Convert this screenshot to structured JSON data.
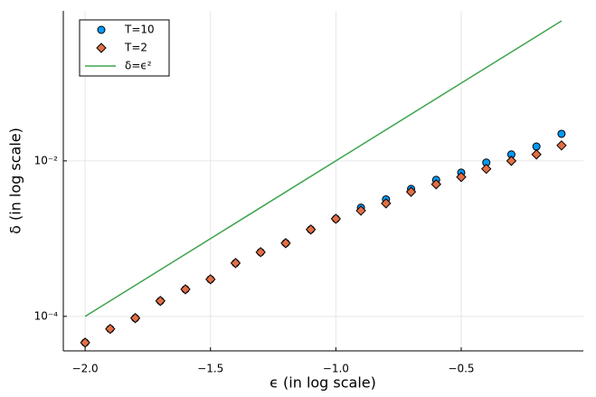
{
  "chart_data": {
    "type": "scatter",
    "xlabel": "ϵ (in log scale)",
    "ylabel": "δ (in log scale)",
    "xlim": [
      -2.087,
      -0.013
    ],
    "ylim": [
      3.6e-05,
      0.85
    ],
    "ylog": true,
    "grid": true,
    "legend": "top-left",
    "xticks": [
      {
        "value": -2,
        "label": "−2.0"
      },
      {
        "value": -1.5,
        "label": "−1.5"
      },
      {
        "value": -1,
        "label": "−1.0"
      },
      {
        "value": -0.5,
        "label": "−0.5"
      }
    ],
    "yticks": [
      {
        "value": 0.0001,
        "label": "10⁻⁴"
      },
      {
        "value": 0.01,
        "label": "10⁻²"
      }
    ],
    "series": [
      {
        "name": "T=10",
        "type": "scatter",
        "marker": "circle",
        "color": "#009af9",
        "x": [
          -2.0,
          -1.9,
          -1.8,
          -1.7,
          -1.6,
          -1.5,
          -1.4,
          -1.3,
          -1.2,
          -1.1,
          -1.0,
          -0.9,
          -0.8,
          -0.7,
          -0.6,
          -0.5,
          -0.4,
          -0.3,
          -0.2,
          -0.1
        ],
        "values": [
          4.6e-05,
          6.9e-05,
          9.5e-05,
          0.000158,
          0.000223,
          0.0003,
          0.000485,
          0.00067,
          0.000875,
          0.00131,
          0.0018,
          0.0025,
          0.0032,
          0.00436,
          0.0057,
          0.00706,
          0.0095,
          0.0121,
          0.0153,
          0.0223
        ]
      },
      {
        "name": "T=2",
        "type": "scatter",
        "marker": "diamond",
        "color": "#e26f46",
        "x": [
          -2.0,
          -1.9,
          -1.8,
          -1.7,
          -1.6,
          -1.5,
          -1.4,
          -1.3,
          -1.2,
          -1.1,
          -1.0,
          -0.9,
          -0.8,
          -0.7,
          -0.6,
          -0.5,
          -0.4,
          -0.3,
          -0.2,
          -0.1
        ],
        "values": [
          4.6e-05,
          6.9e-05,
          9.5e-05,
          0.000158,
          0.000223,
          0.0003,
          0.000485,
          0.00067,
          0.000875,
          0.00131,
          0.0018,
          0.00229,
          0.00284,
          0.004,
          0.005,
          0.0062,
          0.0079,
          0.01,
          0.0121,
          0.0158
        ]
      },
      {
        "name": "δ=ϵ²",
        "type": "line",
        "color": "#3da44d",
        "x": [
          -2.0,
          -0.1
        ],
        "values": [
          0.0001,
          0.631
        ]
      }
    ]
  }
}
